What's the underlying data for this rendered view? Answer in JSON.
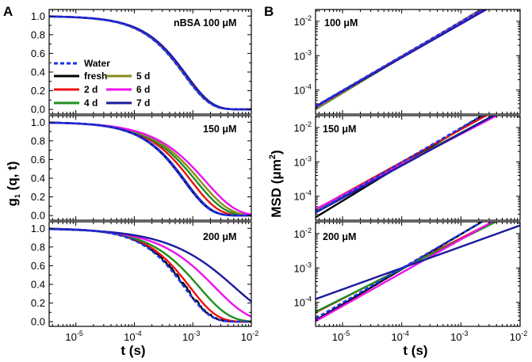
{
  "figure": {
    "panel_a_label": "A",
    "panel_b_label": "B",
    "a_ylabel": "g",
    "a_ylabel_sub": "1",
    "a_ylabel_rest": " (q, t)",
    "a_xlabel": "t (s)",
    "b_ylabel_main": "MSD (μm",
    "b_ylabel_sup": "2",
    "b_ylabel_close": ")",
    "b_xlabel": "t (s)",
    "annotations": {
      "a1": "nBSA 100 μM",
      "a2": "150 μM",
      "a3": "200 μM",
      "b1": "100 μM",
      "b2": "150 μM",
      "b3": "200 μM"
    }
  },
  "legend": {
    "entries": [
      {
        "key": "water",
        "label": "Water",
        "color": "#1a33ee",
        "dash": true
      },
      {
        "key": "fresh",
        "label": "fresh",
        "color": "#000000"
      },
      {
        "key": "d2",
        "label": "2 d",
        "color": "#ee1111"
      },
      {
        "key": "d4",
        "label": "4 d",
        "color": "#1f8f1f"
      },
      {
        "key": "d5",
        "label": "5 d",
        "color": "#8a8a1e"
      },
      {
        "key": "d6",
        "label": "6 d",
        "color": "#ee11ee"
      },
      {
        "key": "d7",
        "label": "7 d",
        "color": "#1a1a9e"
      }
    ]
  },
  "chart_data": [
    {
      "type": "line",
      "panel": "A-top",
      "annotation": "nBSA 100 μM",
      "xscale": "log",
      "xlim": [
        3.5e-06,
        0.01
      ],
      "ylim": [
        -0.05,
        1.07
      ],
      "xlabel": "t (s)",
      "ylabel": "g1 (q, t)",
      "xticks": [
        "10^-5",
        "10^-4",
        "10^-3",
        "10^-2"
      ],
      "yticks": [
        "0.0",
        "0.2",
        "0.4",
        "0.6",
        "0.8",
        "1.0"
      ],
      "series": [
        {
          "name": "Water",
          "model": "exp",
          "tau": 0.00072,
          "beta": 1.0
        },
        {
          "name": "fresh",
          "model": "exp",
          "tau": 0.00073,
          "beta": 1.0
        },
        {
          "name": "2 d",
          "model": "exp",
          "tau": 0.00074,
          "beta": 1.0
        },
        {
          "name": "4 d",
          "model": "exp",
          "tau": 0.00075,
          "beta": 1.0
        },
        {
          "name": "5 d",
          "model": "exp",
          "tau": 0.00076,
          "beta": 1.0
        },
        {
          "name": "6 d",
          "model": "exp",
          "tau": 0.00077,
          "beta": 1.0
        },
        {
          "name": "7 d",
          "model": "exp",
          "tau": 0.00078,
          "beta": 1.0
        }
      ]
    },
    {
      "type": "line",
      "panel": "A-middle",
      "annotation": "150 μM",
      "xscale": "log",
      "xlim": [
        3.5e-06,
        0.01
      ],
      "ylim": [
        -0.05,
        1.07
      ],
      "xlabel": "t (s)",
      "ylabel": "g1 (q, t)",
      "xticks": [
        "10^-5",
        "10^-4",
        "10^-3",
        "10^-2"
      ],
      "yticks": [
        "0.0",
        "0.2",
        "0.4",
        "0.6",
        "0.8",
        "1.0"
      ],
      "series": [
        {
          "name": "Water",
          "model": "exp",
          "tau": 0.00072,
          "beta": 1.0
        },
        {
          "name": "fresh",
          "model": "exp",
          "tau": 0.00072,
          "beta": 1.0
        },
        {
          "name": "2 d",
          "model": "exp",
          "tau": 0.00095,
          "beta": 0.95
        },
        {
          "name": "4 d",
          "model": "exp",
          "tau": 0.00115,
          "beta": 0.9
        },
        {
          "name": "5 d",
          "model": "exp",
          "tau": 0.00135,
          "beta": 0.87
        },
        {
          "name": "6 d",
          "model": "exp",
          "tau": 0.00165,
          "beta": 0.83
        },
        {
          "name": "7 d",
          "model": "exp",
          "tau": 0.00075,
          "beta": 1.0
        }
      ]
    },
    {
      "type": "line",
      "panel": "A-bottom",
      "annotation": "200 μM",
      "xscale": "log",
      "xlim": [
        3.5e-06,
        0.01
      ],
      "ylim": [
        -0.05,
        1.07
      ],
      "xlabel": "t (s)",
      "ylabel": "g1 (q, t)",
      "xticks": [
        "10^-5",
        "10^-4",
        "10^-3",
        "10^-2"
      ],
      "yticks": [
        "0.0",
        "0.2",
        "0.4",
        "0.6",
        "0.8",
        "1.0"
      ],
      "series": [
        {
          "name": "Water",
          "model": "exp",
          "tau": 0.00072,
          "beta": 1.0
        },
        {
          "name": "fresh",
          "model": "exp",
          "tau": 0.00076,
          "beta": 1.0,
          "noise": 0.018
        },
        {
          "name": "2 d",
          "model": "exp",
          "tau": 0.0009,
          "beta": 0.95
        },
        {
          "name": "4 d",
          "model": "exp",
          "tau": 0.0013,
          "beta": 0.85
        },
        {
          "name": "6 d",
          "model": "exp",
          "tau": 0.0024,
          "beta": 0.75
        },
        {
          "name": "7 d",
          "model": "exp",
          "tau": 0.0052,
          "beta": 0.65
        }
      ]
    },
    {
      "type": "line",
      "panel": "B-top",
      "annotation": "100 μM",
      "xscale": "log",
      "yscale": "log",
      "xlim": [
        3.5e-06,
        0.01
      ],
      "ylim": [
        2e-05,
        0.022
      ],
      "xlabel": "t (s)",
      "ylabel": "MSD (μm^2)",
      "xticks": [
        "10^-5",
        "10^-4",
        "10^-3",
        "10^-2"
      ],
      "yticks": [
        "10^-4",
        "10^-3",
        "10^-2"
      ],
      "series": [
        {
          "name": "Water",
          "model": "pow",
          "a": 9.7,
          "b": 1.0
        },
        {
          "name": "fresh",
          "model": "pow",
          "a": 9.5,
          "b": 1.0
        },
        {
          "name": "2 d",
          "model": "pow",
          "a": 9.3,
          "b": 1.0
        },
        {
          "name": "4 d",
          "model": "pow",
          "a": 13.0,
          "b": 1.04
        },
        {
          "name": "5 d",
          "model": "pow",
          "a": 12.0,
          "b": 1.03
        },
        {
          "name": "6 d",
          "model": "pow",
          "a": 9.0,
          "b": 1.0
        },
        {
          "name": "7 d",
          "model": "pow",
          "a": 7.3,
          "b": 0.98
        }
      ]
    },
    {
      "type": "line",
      "panel": "B-middle",
      "annotation": "150 μM",
      "xscale": "log",
      "yscale": "log",
      "xlim": [
        3.5e-06,
        0.01
      ],
      "ylim": [
        2e-05,
        0.022
      ],
      "xlabel": "t (s)",
      "ylabel": "MSD (μm^2)",
      "xticks": [
        "10^-5",
        "10^-4",
        "10^-3",
        "10^-2"
      ],
      "yticks": [
        "10^-4",
        "10^-3",
        "10^-2"
      ],
      "series": [
        {
          "name": "Water",
          "model": "pow",
          "a": 9.7,
          "b": 1.0
        },
        {
          "name": "fresh",
          "model": "pow",
          "a": 13.0,
          "b": 1.05
        },
        {
          "name": "2 d",
          "model": "pow",
          "a": 6.2,
          "b": 0.95
        },
        {
          "name": "4 d",
          "model": "pow",
          "a": 4.0,
          "b": 0.92
        },
        {
          "name": "5 d",
          "model": "pow",
          "a": 3.3,
          "b": 0.9
        },
        {
          "name": "6 d",
          "model": "pow",
          "a": 3.0,
          "b": 0.89
        },
        {
          "name": "7 d",
          "model": "pow",
          "a": 4.45,
          "b": 0.94
        }
      ]
    },
    {
      "type": "line",
      "panel": "B-bottom",
      "annotation": "200 μM",
      "xscale": "log",
      "yscale": "log",
      "xlim": [
        3.5e-06,
        0.01
      ],
      "ylim": [
        2e-05,
        0.022
      ],
      "xlabel": "t (s)",
      "ylabel": "MSD (μm^2)",
      "xticks": [
        "10^-5",
        "10^-4",
        "10^-3",
        "10^-2"
      ],
      "yticks": [
        "10^-4",
        "10^-3",
        "10^-2"
      ],
      "series": [
        {
          "name": "Water",
          "model": "pow",
          "a": 9.7,
          "b": 1.0
        },
        {
          "name": "fresh",
          "model": "pow",
          "a": 11.0,
          "b": 1.02
        },
        {
          "name": "2 d",
          "model": "pow",
          "a": 3.2,
          "b": 0.88
        },
        {
          "name": "4 d",
          "model": "pow",
          "a": 2.6,
          "b": 0.86
        },
        {
          "name": "6 d",
          "model": "pow",
          "a": 5.5,
          "b": 0.97
        },
        {
          "name": "7 d",
          "model": "pow",
          "a": 0.3,
          "b": 0.62
        }
      ]
    }
  ]
}
